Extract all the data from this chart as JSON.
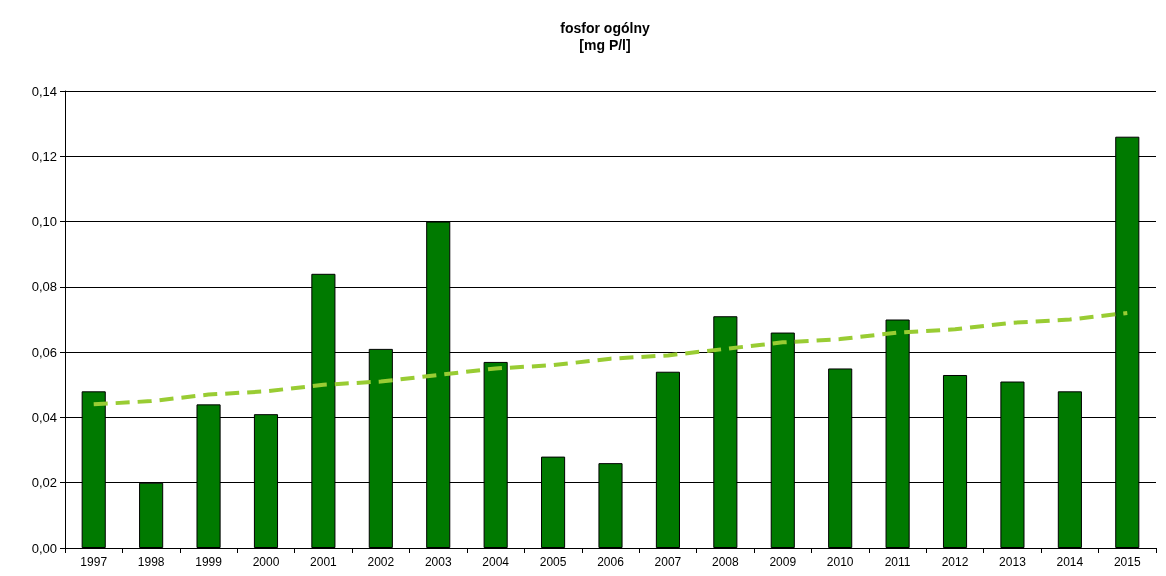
{
  "chart_data": {
    "type": "bar",
    "title": "fosfor ogólny\n[mg P/l]",
    "categories": [
      "1997",
      "1998",
      "1999",
      "2000",
      "2001",
      "2002",
      "2003",
      "2004",
      "2005",
      "2006",
      "2007",
      "2008",
      "2009",
      "2010",
      "2011",
      "2012",
      "2013",
      "2014",
      "2015"
    ],
    "series": [
      {
        "color": "#007a00",
        "values": [
          0.048,
          0.02,
          0.044,
          0.041,
          0.084,
          0.061,
          0.1,
          0.057,
          0.028,
          0.026,
          0.054,
          0.071,
          0.066,
          0.055,
          0.07,
          0.053,
          0.051,
          0.048,
          0.126
        ]
      },
      {
        "type": "line",
        "color": "#99cc33",
        "line_style": "dashed",
        "marker": "none",
        "values": [
          0.044,
          0.045,
          0.047,
          0.048,
          0.05,
          0.051,
          0.053,
          0.055,
          0.056,
          0.058,
          0.059,
          0.061,
          0.063,
          0.064,
          0.066,
          0.067,
          0.069,
          0.07,
          0.072
        ]
      }
    ],
    "ylim": [
      0,
      0.14
    ],
    "yticks": [
      {
        "value": 0,
        "label": "0,00"
      },
      {
        "value": 0.02,
        "label": "0,02"
      },
      {
        "value": 0.04,
        "label": "0,04"
      },
      {
        "value": 0.06,
        "label": "0,06"
      },
      {
        "value": 0.08,
        "label": "0,08"
      },
      {
        "value": 0.1,
        "label": "0,10"
      },
      {
        "value": 0.12,
        "label": "0,12"
      },
      {
        "value": 0.14,
        "label": "0,14"
      }
    ],
    "grid": "y"
  }
}
